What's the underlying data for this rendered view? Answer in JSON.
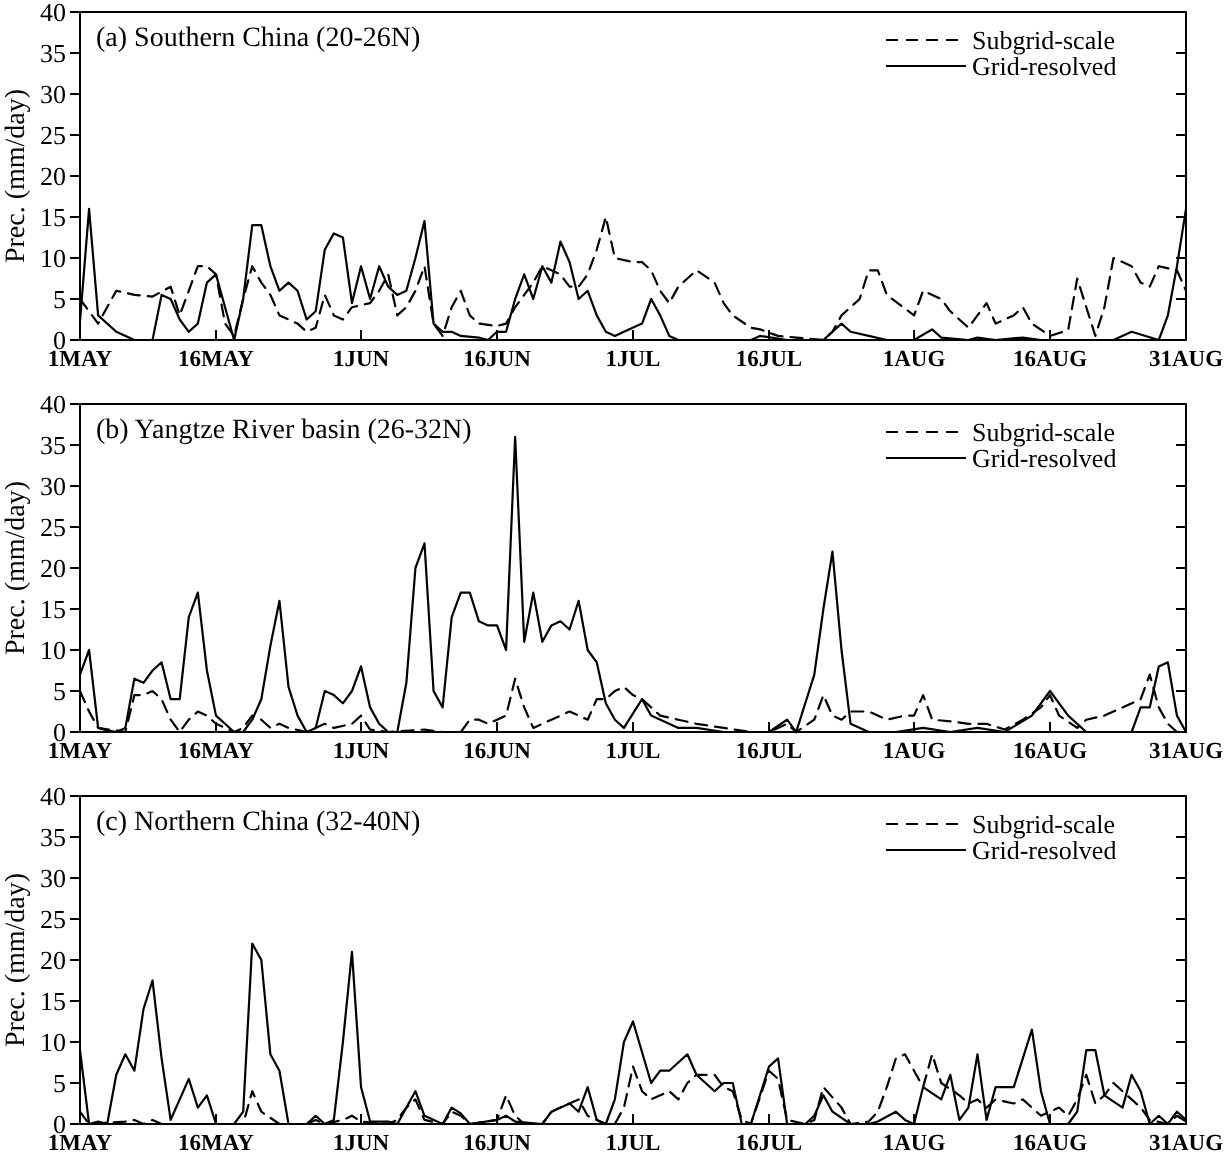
{
  "chart_data": [
    {
      "type": "line",
      "title": "(a) Southern China (20-26N)",
      "ylabel": "Prec. (mm/day)",
      "xlim": [
        "--05-01",
        "--08-31"
      ],
      "xticks": [
        {
          "value": "--05-01",
          "label": "1MAY"
        },
        {
          "value": "--05-16",
          "label": "16MAY"
        },
        {
          "value": "--06-01",
          "label": "1JUN"
        },
        {
          "value": "--06-16",
          "label": "16JUN"
        },
        {
          "value": "--07-01",
          "label": "1JUL"
        },
        {
          "value": "--07-16",
          "label": "16JUL"
        },
        {
          "value": "--08-01",
          "label": "1AUG"
        },
        {
          "value": "--08-16",
          "label": "16AUG"
        },
        {
          "value": "--08-31",
          "label": "31AUG"
        }
      ],
      "ylim": [
        0,
        40
      ],
      "yticks": [
        0,
        5,
        10,
        15,
        20,
        25,
        30,
        35,
        40
      ],
      "legend": "top right",
      "series": [
        {
          "name": "Subgrid-scale",
          "color": "#000000",
          "line_style": "dashed",
          "x": [
            "--05-01",
            "--05-03",
            "--05-05",
            "--05-07",
            "--05-09",
            "--05-11",
            "--05-12",
            "--05-13",
            "--05-14",
            "--05-15",
            "--05-16",
            "--05-17",
            "--05-18",
            "--05-19",
            "--05-20",
            "--05-21",
            "--05-22",
            "--05-23",
            "--05-25",
            "--05-26",
            "--05-27",
            "--05-28",
            "--05-29",
            "--05-30",
            "--05-31",
            "--06-02",
            "--06-03",
            "--06-04",
            "--06-05",
            "--06-06",
            "--06-07",
            "--06-08",
            "--06-09",
            "--06-10",
            "--06-11",
            "--06-12",
            "--06-13",
            "--06-14",
            "--06-16",
            "--06-17",
            "--06-18",
            "--06-20",
            "--06-21",
            "--06-22",
            "--06-23",
            "--06-24",
            "--06-25",
            "--06-26",
            "--06-27",
            "--06-28",
            "--06-29",
            "--07-01",
            "--07-02",
            "--07-03",
            "--07-04",
            "--07-05",
            "--07-06",
            "--07-07",
            "--07-08",
            "--07-10",
            "--07-11",
            "--07-12",
            "--07-14",
            "--07-15",
            "--07-17",
            "--07-19",
            "--07-20",
            "--07-22",
            "--07-23",
            "--07-24",
            "--07-26",
            "--07-27",
            "--07-28",
            "--07-29",
            "--08-01",
            "--08-02",
            "--08-04",
            "--08-05",
            "--08-07",
            "--08-08",
            "--08-09",
            "--08-10",
            "--08-12",
            "--08-13",
            "--08-14",
            "--08-16",
            "--08-18",
            "--08-19",
            "--08-21",
            "--08-22",
            "--08-23",
            "--08-25",
            "--08-26",
            "--08-27",
            "--08-28",
            "--08-30",
            "--08-31"
          ],
          "values": [
            5,
            2,
            6,
            5.5,
            5.3,
            6.5,
            3,
            6,
            9,
            9,
            8,
            2,
            0.5,
            5,
            9,
            7,
            5.5,
            3,
            2,
            1,
            1.5,
            5.5,
            3,
            2.5,
            4,
            4.5,
            6,
            8,
            3,
            4,
            6,
            9,
            2,
            0.5,
            4,
            6,
            3,
            2,
            1.7,
            2,
            4,
            7,
            9,
            8.5,
            8,
            6.5,
            6.5,
            8,
            11,
            15,
            10,
            9.5,
            9.5,
            8.5,
            6,
            4.5,
            6.5,
            7.5,
            8.5,
            7,
            4.5,
            3,
            1.5,
            1.3,
            0.5,
            0.3,
            0.2,
            0,
            1,
            3,
            5,
            8.5,
            8.5,
            5.5,
            3,
            6,
            5,
            3.5,
            1.5,
            3,
            4.5,
            2,
            3,
            4,
            2,
            0.5,
            1.2,
            7.5,
            0.5,
            4,
            10,
            9,
            7,
            6.5,
            9,
            8.5,
            6
          ]
        },
        {
          "name": "Grid-resolved",
          "color": "#000000",
          "line_style": "solid",
          "x": [
            "--05-01",
            "--05-02",
            "--05-03",
            "--05-05",
            "--05-07",
            "--05-09",
            "--05-10",
            "--05-11",
            "--05-12",
            "--05-13",
            "--05-14",
            "--05-15",
            "--05-16",
            "--05-17",
            "--05-18",
            "--05-19",
            "--05-20",
            "--05-21",
            "--05-22",
            "--05-23",
            "--05-24",
            "--05-25",
            "--05-26",
            "--05-27",
            "--05-28",
            "--05-29",
            "--05-30",
            "--05-31",
            "--06-01",
            "--06-02",
            "--06-03",
            "--06-04",
            "--06-05",
            "--06-06",
            "--06-07",
            "--06-08",
            "--06-09",
            "--06-10",
            "--06-11",
            "--06-12",
            "--06-14",
            "--06-15",
            "--06-16",
            "--06-17",
            "--06-18",
            "--06-19",
            "--06-20",
            "--06-21",
            "--06-22",
            "--06-23",
            "--06-24",
            "--06-25",
            "--06-26",
            "--06-27",
            "--06-28",
            "--06-29",
            "--06-30",
            "--07-02",
            "--07-03",
            "--07-04",
            "--07-05",
            "--07-06",
            "--07-14",
            "--07-15",
            "--07-18",
            "--07-22",
            "--07-24",
            "--07-25",
            "--07-27",
            "--07-29",
            "--08-01",
            "--08-03",
            "--08-04",
            "--08-07",
            "--08-08",
            "--08-10",
            "--08-13",
            "--08-15",
            "--08-23",
            "--08-25",
            "--08-28",
            "--08-29",
            "--08-30",
            "--08-31"
          ],
          "values": [
            2.3,
            16,
            3,
            1,
            0,
            0,
            5.5,
            5,
            2.5,
            1,
            2,
            7,
            8,
            4,
            0,
            5,
            14,
            14,
            9,
            6,
            7,
            6,
            2.5,
            3.5,
            11,
            13,
            12.5,
            4.5,
            9,
            5,
            9,
            6.5,
            5.5,
            6,
            10,
            14.5,
            2,
            1,
            1,
            0.5,
            0.3,
            0,
            1,
            1,
            5,
            8,
            5,
            9,
            7,
            12,
            9.5,
            5,
            6,
            3,
            1,
            0.5,
            1,
            2,
            5,
            3,
            0.5,
            0,
            0,
            0.5,
            0,
            0,
            2,
            1,
            0.5,
            0,
            0,
            1.3,
            0.3,
            0,
            0.3,
            0,
            0.3,
            0,
            0,
            1,
            0,
            3,
            9,
            16
          ]
        }
      ]
    },
    {
      "type": "line",
      "title": "(b) Yangtze River basin (26-32N)",
      "ylabel": "Prec. (mm/day)",
      "xlim": [
        "--05-01",
        "--08-31"
      ],
      "xticks": [
        {
          "value": "--05-01",
          "label": "1MAY"
        },
        {
          "value": "--05-16",
          "label": "16MAY"
        },
        {
          "value": "--06-01",
          "label": "1JUN"
        },
        {
          "value": "--06-16",
          "label": "16JUN"
        },
        {
          "value": "--07-01",
          "label": "1JUL"
        },
        {
          "value": "--07-16",
          "label": "16JUL"
        },
        {
          "value": "--08-01",
          "label": "1AUG"
        },
        {
          "value": "--08-16",
          "label": "16AUG"
        },
        {
          "value": "--08-31",
          "label": "31AUG"
        }
      ],
      "ylim": [
        0,
        40
      ],
      "yticks": [
        0,
        5,
        10,
        15,
        20,
        25,
        30,
        35,
        40
      ],
      "legend": "top right",
      "series": [
        {
          "name": "Subgrid-scale",
          "color": "#000000",
          "line_style": "dashed",
          "x": [
            "--05-01",
            "--05-02",
            "--05-03",
            "--05-06",
            "--05-07",
            "--05-08",
            "--05-09",
            "--05-10",
            "--05-11",
            "--05-12",
            "--05-13",
            "--05-14",
            "--05-15",
            "--05-16",
            "--05-17",
            "--05-18",
            "--05-19",
            "--05-20",
            "--05-21",
            "--05-22",
            "--05-23",
            "--05-24",
            "--05-26",
            "--05-28",
            "--05-29",
            "--05-31",
            "--06-01",
            "--06-02",
            "--06-04",
            "--06-08",
            "--06-10",
            "--06-12",
            "--06-13",
            "--06-14",
            "--06-15",
            "--06-16",
            "--06-17",
            "--06-18",
            "--06-19",
            "--06-20",
            "--06-21",
            "--06-22",
            "--06-23",
            "--06-24",
            "--06-26",
            "--06-27",
            "--06-28",
            "--06-29",
            "--06-30",
            "--07-01",
            "--07-02",
            "--07-03",
            "--07-04",
            "--07-06",
            "--07-08",
            "--07-11",
            "--07-14",
            "--07-16",
            "--07-18",
            "--07-19",
            "--07-21",
            "--07-22",
            "--07-23",
            "--07-24",
            "--07-25",
            "--07-27",
            "--07-29",
            "--07-31",
            "--08-01",
            "--08-02",
            "--08-03",
            "--08-05",
            "--08-07",
            "--08-09",
            "--08-11",
            "--08-13",
            "--08-15",
            "--08-16",
            "--08-17",
            "--08-19",
            "--08-20",
            "--08-22",
            "--08-24",
            "--08-26",
            "--08-27",
            "--08-28",
            "--08-29",
            "--08-30",
            "--08-31"
          ],
          "values": [
            5,
            2.5,
            0.5,
            0,
            4.5,
            4.5,
            5,
            4,
            1.5,
            0,
            1.5,
            2.5,
            2,
            1,
            0.5,
            0,
            0.5,
            2,
            1.5,
            0.5,
            1,
            0.5,
            0,
            1,
            0.5,
            1,
            2,
            0.3,
            0,
            0.3,
            0,
            0,
            1.5,
            1.5,
            1,
            1.5,
            2,
            6.5,
            3,
            0.5,
            1,
            1.5,
            2,
            2.5,
            1.5,
            4,
            4,
            5,
            5.5,
            4.5,
            4,
            3,
            2,
            1.5,
            1,
            0.5,
            0,
            0,
            1,
            0,
            1.5,
            4.5,
            2,
            1.5,
            2.5,
            2.5,
            1.5,
            2,
            2,
            4.5,
            1.5,
            1.3,
            1,
            1,
            0.3,
            1.5,
            3,
            4.5,
            2,
            0.5,
            1.5,
            2,
            3,
            4,
            7,
            3,
            1,
            0,
            0
          ]
        },
        {
          "name": "Grid-resolved",
          "color": "#000000",
          "line_style": "solid",
          "x": [
            "--05-01",
            "--05-02",
            "--05-03",
            "--05-04",
            "--05-05",
            "--05-06",
            "--05-07",
            "--05-08",
            "--05-09",
            "--05-10",
            "--05-11",
            "--05-12",
            "--05-13",
            "--05-14",
            "--05-15",
            "--05-16",
            "--05-17",
            "--05-18",
            "--05-19",
            "--05-20",
            "--05-21",
            "--05-22",
            "--05-23",
            "--05-24",
            "--05-25",
            "--05-26",
            "--05-27",
            "--05-28",
            "--05-29",
            "--05-30",
            "--05-31",
            "--06-01",
            "--06-02",
            "--06-03",
            "--06-04",
            "--06-05",
            "--06-06",
            "--06-07",
            "--06-08",
            "--06-09",
            "--06-10",
            "--06-11",
            "--06-12",
            "--06-13",
            "--06-14",
            "--06-15",
            "--06-16",
            "--06-17",
            "--06-18",
            "--06-19",
            "--06-20",
            "--06-21",
            "--06-22",
            "--06-23",
            "--06-24",
            "--06-25",
            "--06-26",
            "--06-27",
            "--06-28",
            "--06-29",
            "--06-30",
            "--07-02",
            "--07-03",
            "--07-06",
            "--07-08",
            "--07-11",
            "--07-16",
            "--07-18",
            "--07-19",
            "--07-21",
            "--07-22",
            "--07-23",
            "--07-24",
            "--07-25",
            "--07-27",
            "--07-30",
            "--08-02",
            "--08-05",
            "--08-08",
            "--08-11",
            "--08-14",
            "--08-16",
            "--08-18",
            "--08-20",
            "--08-25",
            "--08-26",
            "--08-27",
            "--08-28",
            "--08-29",
            "--08-30",
            "--08-31"
          ],
          "values": [
            7,
            10,
            0.5,
            0.2,
            0,
            0.5,
            6.5,
            6,
            7.5,
            8.5,
            4,
            4,
            14,
            17,
            7.5,
            2,
            1,
            0,
            0,
            1.5,
            4,
            10.5,
            16,
            5.5,
            2,
            0,
            0.5,
            5,
            4.5,
            3.5,
            5,
            8,
            3,
            1,
            0,
            0,
            6,
            20,
            23,
            5,
            3,
            14,
            17,
            17,
            13.5,
            13,
            13,
            10,
            36,
            11,
            17,
            11,
            13,
            13.5,
            12.5,
            16,
            10,
            8.5,
            3.5,
            1.5,
            0.5,
            4,
            2,
            0.5,
            0.5,
            0,
            0,
            1.5,
            0,
            7,
            15,
            22,
            10,
            1,
            0,
            0,
            0.5,
            0,
            0.5,
            0,
            2,
            5,
            2,
            0,
            0,
            3,
            3,
            8,
            8.5,
            2,
            0
          ]
        }
      ]
    },
    {
      "type": "line",
      "title": "(c) Northern China (32-40N)",
      "ylabel": "Prec. (mm/day)",
      "xlim": [
        "--05-01",
        "--08-31"
      ],
      "xticks": [
        {
          "value": "--05-01",
          "label": "1MAY"
        },
        {
          "value": "--05-16",
          "label": "16MAY"
        },
        {
          "value": "--06-01",
          "label": "1JUN"
        },
        {
          "value": "--06-16",
          "label": "16JUN"
        },
        {
          "value": "--07-01",
          "label": "1JUL"
        },
        {
          "value": "--07-16",
          "label": "16JUL"
        },
        {
          "value": "--08-01",
          "label": "1AUG"
        },
        {
          "value": "--08-16",
          "label": "16AUG"
        },
        {
          "value": "--08-31",
          "label": "31AUG"
        }
      ],
      "ylim": [
        0,
        40
      ],
      "yticks": [
        0,
        5,
        10,
        15,
        20,
        25,
        30,
        35,
        40
      ],
      "legend": "top right",
      "series": [
        {
          "name": "Subgrid-scale",
          "color": "#000000",
          "line_style": "dashed",
          "x": [
            "--05-01",
            "--05-02",
            "--05-06",
            "--05-07",
            "--05-08",
            "--05-09",
            "--05-10",
            "--05-19",
            "--05-20",
            "--05-21",
            "--05-23",
            "--05-26",
            "--05-27",
            "--05-28",
            "--05-30",
            "--05-31",
            "--06-01",
            "--06-04",
            "--06-05",
            "--06-06",
            "--06-07",
            "--06-08",
            "--06-10",
            "--06-11",
            "--06-12",
            "--06-13",
            "--06-16",
            "--06-17",
            "--06-18",
            "--06-19",
            "--06-21",
            "--06-22",
            "--06-24",
            "--06-25",
            "--06-26",
            "--06-28",
            "--06-29",
            "--06-30",
            "--07-01",
            "--07-02",
            "--07-03",
            "--07-05",
            "--07-06",
            "--07-07",
            "--07-08",
            "--07-10",
            "--07-11",
            "--07-12",
            "--07-13",
            "--07-14",
            "--07-16",
            "--07-17",
            "--07-18",
            "--07-20",
            "--07-21",
            "--07-22",
            "--07-24",
            "--07-25",
            "--07-27",
            "--07-28",
            "--07-29",
            "--07-30",
            "--07-31",
            "--08-02",
            "--08-03",
            "--08-04",
            "--08-06",
            "--08-07",
            "--08-08",
            "--08-09",
            "--08-10",
            "--08-12",
            "--08-13",
            "--08-14",
            "--08-15",
            "--08-17",
            "--08-18",
            "--08-19",
            "--08-20",
            "--08-21",
            "--08-22",
            "--08-23",
            "--08-25",
            "--08-26",
            "--08-27",
            "--08-29",
            "--08-30",
            "--08-31"
          ],
          "values": [
            1.5,
            0,
            0.3,
            0.5,
            0,
            0.5,
            0,
            0,
            4,
            1.5,
            0,
            0,
            0.5,
            0,
            0.5,
            1,
            0.3,
            0,
            0.5,
            2,
            3,
            0.5,
            0,
            1.5,
            1,
            0,
            0.5,
            3.5,
            1,
            0,
            0,
            1.5,
            2.5,
            3,
            1,
            0,
            0,
            2,
            7,
            4,
            3,
            4,
            3,
            5,
            6,
            6,
            4.5,
            4,
            0.5,
            0,
            6.5,
            5.5,
            0.5,
            0,
            0.5,
            4.5,
            2,
            0,
            0.3,
            1.5,
            4.5,
            8,
            8.5,
            4.5,
            8.5,
            5,
            3.5,
            2.5,
            3,
            2,
            3,
            2.5,
            3,
            2,
            1,
            2,
            1,
            3,
            6,
            2.5,
            3.5,
            5,
            3,
            2,
            0.5,
            0,
            1,
            0.3
          ]
        },
        {
          "name": "Grid-resolved",
          "color": "#000000",
          "line_style": "solid",
          "x": [
            "--05-01",
            "--05-02",
            "--05-03",
            "--05-04",
            "--05-05",
            "--05-06",
            "--05-07",
            "--05-08",
            "--05-09",
            "--05-10",
            "--05-11",
            "--05-12",
            "--05-13",
            "--05-14",
            "--05-15",
            "--05-16",
            "--05-18",
            "--05-19",
            "--05-20",
            "--05-21",
            "--05-22",
            "--05-23",
            "--05-24",
            "--05-26",
            "--05-27",
            "--05-28",
            "--05-29",
            "--05-30",
            "--05-31",
            "--06-01",
            "--06-02",
            "--06-04",
            "--06-05",
            "--06-06",
            "--06-07",
            "--06-08",
            "--06-10",
            "--06-11",
            "--06-12",
            "--06-13",
            "--06-16",
            "--06-17",
            "--06-18",
            "--06-21",
            "--06-22",
            "--06-24",
            "--06-25",
            "--06-26",
            "--06-27",
            "--06-28",
            "--06-29",
            "--06-30",
            "--07-01",
            "--07-03",
            "--07-04",
            "--07-05",
            "--07-07",
            "--07-08",
            "--07-10",
            "--07-11",
            "--07-12",
            "--07-13",
            "--07-14",
            "--07-16",
            "--07-17",
            "--07-18",
            "--07-20",
            "--07-21",
            "--07-22",
            "--07-23",
            "--07-25",
            "--07-27",
            "--07-28",
            "--07-30",
            "--07-31",
            "--08-01",
            "--08-02",
            "--08-04",
            "--08-05",
            "--08-06",
            "--08-07",
            "--08-08",
            "--08-09",
            "--08-10",
            "--08-12",
            "--08-14",
            "--08-15",
            "--08-16",
            "--08-18",
            "--08-19",
            "--08-20",
            "--08-21",
            "--08-22",
            "--08-24",
            "--08-25",
            "--08-26",
            "--08-27",
            "--08-28",
            "--08-29",
            "--08-30",
            "--08-31"
          ],
          "values": [
            9,
            0,
            0.3,
            0,
            6,
            8.5,
            6.5,
            14,
            17.5,
            8,
            0.5,
            3,
            5.5,
            2,
            3.5,
            0,
            0,
            1.5,
            22,
            20,
            8.5,
            6.5,
            0,
            0,
            1,
            0,
            0.5,
            10,
            21,
            4.5,
            0.3,
            0.3,
            0,
            2,
            4,
            1,
            0,
            2,
            1.3,
            0,
            0.5,
            1,
            0.3,
            0,
            1.5,
            2.5,
            1.5,
            4.5,
            0.5,
            0,
            3,
            10,
            12.5,
            5,
            6.5,
            6.5,
            8.5,
            6,
            4,
            5,
            5,
            0,
            0,
            7,
            8,
            0,
            0,
            1,
            3.5,
            1.5,
            0,
            0,
            0.3,
            1.5,
            0.5,
            0,
            4.5,
            3,
            6,
            0.5,
            2,
            8.5,
            0.5,
            4.5,
            4.5,
            11.5,
            4,
            0,
            0,
            1.5,
            9,
            9,
            3.5,
            2,
            6,
            4,
            0,
            1,
            0,
            1.5,
            0.5
          ]
        }
      ]
    }
  ]
}
